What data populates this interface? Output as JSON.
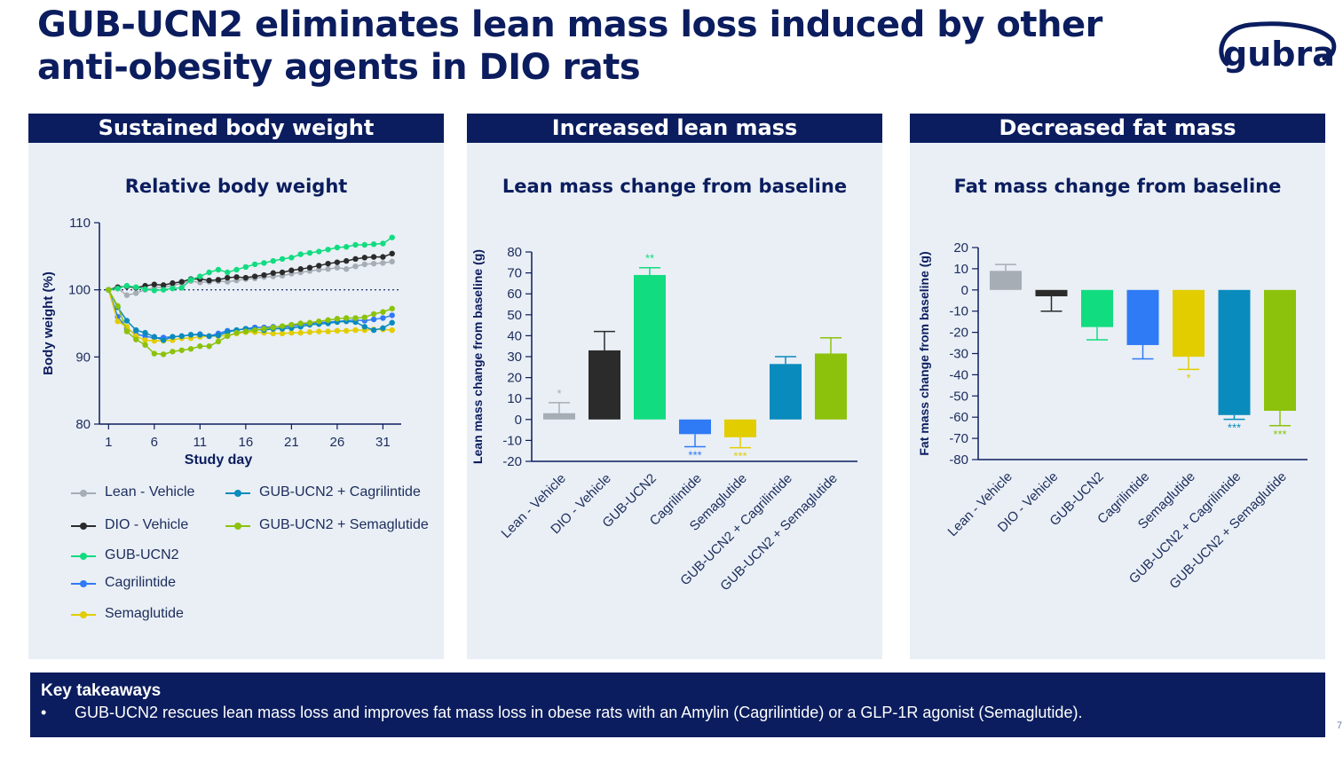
{
  "title": {
    "line1": "GUB-UCN2 eliminates lean mass loss induced by other",
    "line2": "anti-obesity agents in DIO rats"
  },
  "logo_text": "gubra",
  "colors": {
    "navy": "#0b1d5e",
    "panel_bg": "#e9eff5",
    "lean_vehicle": "#a6adb4",
    "dio_vehicle": "#2b2b2b",
    "gub_ucn2": "#12dc80",
    "cagrilintide": "#2f7af5",
    "semaglutide": "#e2cd00",
    "gub_cagri": "#0a8bbd",
    "gub_sema": "#8cc20c"
  },
  "panels": [
    {
      "header": "Sustained body weight",
      "chart_title": "Relative body weight"
    },
    {
      "header": "Increased lean mass",
      "chart_title": "Lean mass change from baseline"
    },
    {
      "header": "Decreased fat mass",
      "chart_title": "Fat mass change from baseline"
    }
  ],
  "legend": [
    {
      "label": "Lean - Vehicle",
      "color": "#a6adb4"
    },
    {
      "label": "GUB-UCN2 + Cagrilintide",
      "color": "#0a8bbd"
    },
    {
      "label": "DIO - Vehicle",
      "color": "#2b2b2b"
    },
    {
      "label": "GUB-UCN2 + Semaglutide",
      "color": "#8cc20c"
    },
    {
      "label": "GUB-UCN2",
      "color": "#12dc80"
    },
    {
      "label": "Cagrilintide",
      "color": "#2f7af5"
    },
    {
      "label": "Semaglutide",
      "color": "#e2cd00"
    }
  ],
  "chart_data": [
    {
      "type": "line",
      "title": "Relative body weight",
      "xlabel": "Study day",
      "ylabel": "Body weight (%)",
      "xticks": [
        1,
        6,
        11,
        16,
        21,
        26,
        31
      ],
      "yticks": [
        80,
        90,
        100,
        110
      ],
      "xlim": [
        0,
        33
      ],
      "ylim": [
        80,
        110
      ],
      "reference_line": 100,
      "x": [
        1,
        2,
        3,
        4,
        5,
        6,
        7,
        8,
        9,
        10,
        11,
        12,
        13,
        14,
        15,
        16,
        17,
        18,
        19,
        20,
        21,
        22,
        23,
        24,
        25,
        26,
        27,
        28,
        29,
        30,
        31,
        32
      ],
      "series": [
        {
          "name": "Lean - Vehicle",
          "color": "#a6adb4",
          "values": [
            100,
            100.2,
            99.2,
            99.5,
            100,
            100.3,
            100.4,
            100.6,
            101,
            101.3,
            101.1,
            101.2,
            101.3,
            101.2,
            101.4,
            101.6,
            101.7,
            101.9,
            102,
            102.1,
            102.4,
            102.6,
            102.8,
            103,
            103.1,
            103.3,
            103.1,
            103.5,
            103.8,
            103.9,
            104,
            104.2
          ]
        },
        {
          "name": "DIO - Vehicle",
          "color": "#2b2b2b",
          "values": [
            100,
            100.4,
            100.5,
            100.3,
            100.6,
            100.8,
            100.7,
            101,
            101.2,
            101.6,
            101.6,
            101.4,
            101.5,
            101.8,
            101.9,
            101.8,
            102,
            102.2,
            102.5,
            102.6,
            102.9,
            103.1,
            103.3,
            103.6,
            103.9,
            104.1,
            104.3,
            104.6,
            104.8,
            104.9,
            104.9,
            105.4
          ]
        },
        {
          "name": "GUB-UCN2",
          "color": "#12dc80",
          "values": [
            100,
            100.2,
            100.6,
            100.4,
            100.1,
            99.9,
            100,
            100.2,
            100.3,
            101.5,
            102,
            102.6,
            103,
            102.6,
            103,
            103.4,
            103.8,
            104,
            104.3,
            104.6,
            104.8,
            105.3,
            105.5,
            105.7,
            106,
            106.3,
            106.4,
            106.7,
            106.7,
            106.8,
            106.9,
            107.8
          ]
        },
        {
          "name": "Cagrilintide",
          "color": "#2f7af5",
          "values": [
            100,
            96,
            94.2,
            93.4,
            93.1,
            92.8,
            92.9,
            93,
            93.1,
            93.3,
            93.4,
            93.1,
            93.5,
            93.9,
            94,
            94.2,
            94.4,
            94.4,
            94.5,
            94.4,
            94.6,
            94.8,
            95,
            95.1,
            95.2,
            95.3,
            95.4,
            95.5,
            95.4,
            95.6,
            95.8,
            96.2
          ]
        },
        {
          "name": "Semaglutide",
          "color": "#e2cd00",
          "values": [
            100,
            95.3,
            94.5,
            93.1,
            92.5,
            92.4,
            92.4,
            92.5,
            92.8,
            92.8,
            93,
            93.1,
            93.1,
            93.2,
            93.5,
            93.7,
            93.7,
            93.6,
            93.5,
            93.5,
            93.6,
            93.6,
            93.7,
            93.8,
            93.8,
            93.9,
            93.9,
            94,
            94,
            94.1,
            94.1,
            94
          ]
        },
        {
          "name": "GUB-UCN2 + Cagrilintide",
          "color": "#0a8bbd",
          "values": [
            100,
            97.4,
            95.4,
            94,
            93.6,
            93,
            92.5,
            93,
            93.1,
            93.3,
            93.3,
            93.1,
            93.2,
            93.7,
            94,
            94.2,
            94.1,
            94,
            94.2,
            94.2,
            94.3,
            94.5,
            94.8,
            94.9,
            95,
            95.2,
            95.3,
            95.2,
            94.5,
            94,
            94.3,
            95.1
          ]
        },
        {
          "name": "GUB-UCN2 + Semaglutide",
          "color": "#8cc20c",
          "values": [
            100,
            97.6,
            93.8,
            92.6,
            91.8,
            90.5,
            90.4,
            90.8,
            91,
            91.2,
            91.6,
            91.6,
            92.3,
            93.1,
            93.6,
            93.8,
            94,
            94.2,
            94.4,
            94.6,
            94.8,
            95,
            95.1,
            95.3,
            95.5,
            95.7,
            95.8,
            95.8,
            95.9,
            96.4,
            96.7,
            97.2
          ]
        }
      ]
    },
    {
      "type": "bar",
      "title": "Lean mass change from baseline",
      "ylabel": "Lean mass change from baseline (g)",
      "yticks": [
        -20,
        -10,
        0,
        10,
        20,
        30,
        40,
        50,
        60,
        70,
        80
      ],
      "ylim": [
        -20,
        80
      ],
      "categories": [
        "Lean - Vehicle",
        "DIO - Vehicle",
        "GUB-UCN2",
        "Cagrilintide",
        "Semaglutide",
        "GUB-UCN2 + Cagrilintide",
        "GUB-UCN2 + Semaglutide"
      ],
      "values": [
        3,
        33,
        69,
        -7,
        -8.5,
        26.5,
        31.5
      ],
      "errors": [
        5,
        9,
        3.5,
        6,
        5,
        3.5,
        7.5
      ],
      "significance": [
        "*",
        "",
        "**",
        "***",
        "***",
        "",
        ""
      ],
      "bar_colors": [
        "#a6adb4",
        "#2b2b2b",
        "#12dc80",
        "#2f7af5",
        "#e2cd00",
        "#0a8bbd",
        "#8cc20c"
      ]
    },
    {
      "type": "bar",
      "title": "Fat mass change from baseline",
      "ylabel": "Fat mass change from baseline (g)",
      "yticks": [
        -80,
        -70,
        -60,
        -50,
        -40,
        -30,
        -20,
        -10,
        0,
        10,
        20
      ],
      "ylim": [
        -80,
        20
      ],
      "categories": [
        "Lean - Vehicle",
        "DIO - Vehicle",
        "GUB-UCN2",
        "Cagrilintide",
        "Semaglutide",
        "GUB-UCN2 + Cagrilintide",
        "GUB-UCN2 + Semaglutide"
      ],
      "values": [
        9,
        -3,
        -17.5,
        -26,
        -31.5,
        -59,
        -57
      ],
      "errors": [
        3,
        7,
        6,
        6.5,
        6,
        2,
        7
      ],
      "significance": [
        "",
        "",
        "",
        "",
        "*",
        "***",
        "***"
      ],
      "bar_colors": [
        "#a6adb4",
        "#2b2b2b",
        "#12dc80",
        "#2f7af5",
        "#e2cd00",
        "#0a8bbd",
        "#8cc20c"
      ]
    }
  ],
  "takeaway": {
    "heading": "Key takeaways",
    "bullet": "•",
    "text": "GUB-UCN2 rescues lean mass loss and improves fat mass loss in obese rats with an Amylin (Cagrilintide) or a GLP-1R agonist (Semaglutide)."
  },
  "page_number": "7"
}
